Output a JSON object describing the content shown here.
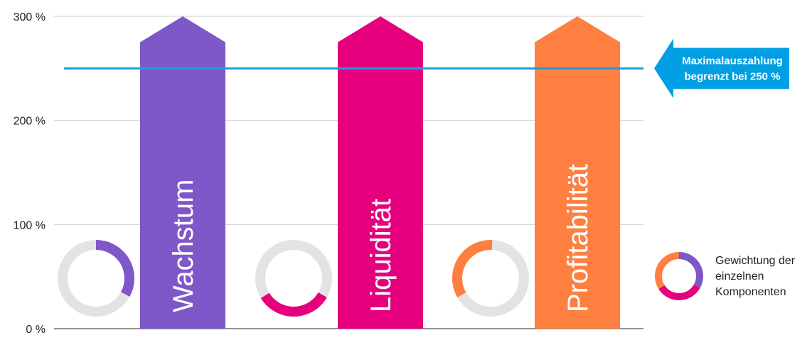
{
  "chart_data": {
    "type": "bar",
    "categories": [
      "Wachstum",
      "Liquidität",
      "Profitabilität"
    ],
    "values": [
      300,
      300,
      300
    ],
    "ylim": [
      0,
      300
    ],
    "yticks": [
      {
        "value": 0,
        "label": "0 %"
      },
      {
        "value": 100,
        "label": "100 %"
      },
      {
        "value": 200,
        "label": "200 %"
      },
      {
        "value": 300,
        "label": "300 %"
      }
    ],
    "grid": true,
    "colors": {
      "Wachstum": "#7e57c8",
      "Liquidität": "#e6007e",
      "Profitabilität": "#ff7f41",
      "donut_track": "#e3e3e3",
      "cap_line": "#1a9ee0",
      "callout": "#009fe3"
    },
    "weights": {
      "Wachstum": 0.33,
      "Liquidität": 0.33,
      "Profitabilität": 0.34
    },
    "cap": {
      "value": 250,
      "label_lines": [
        "Maximalauszahlung",
        "begrenzt bei 250 %"
      ]
    },
    "legend": {
      "placement": "right",
      "lines": [
        "Gewichtung der",
        "einzelnen",
        "Komponenten"
      ]
    }
  }
}
